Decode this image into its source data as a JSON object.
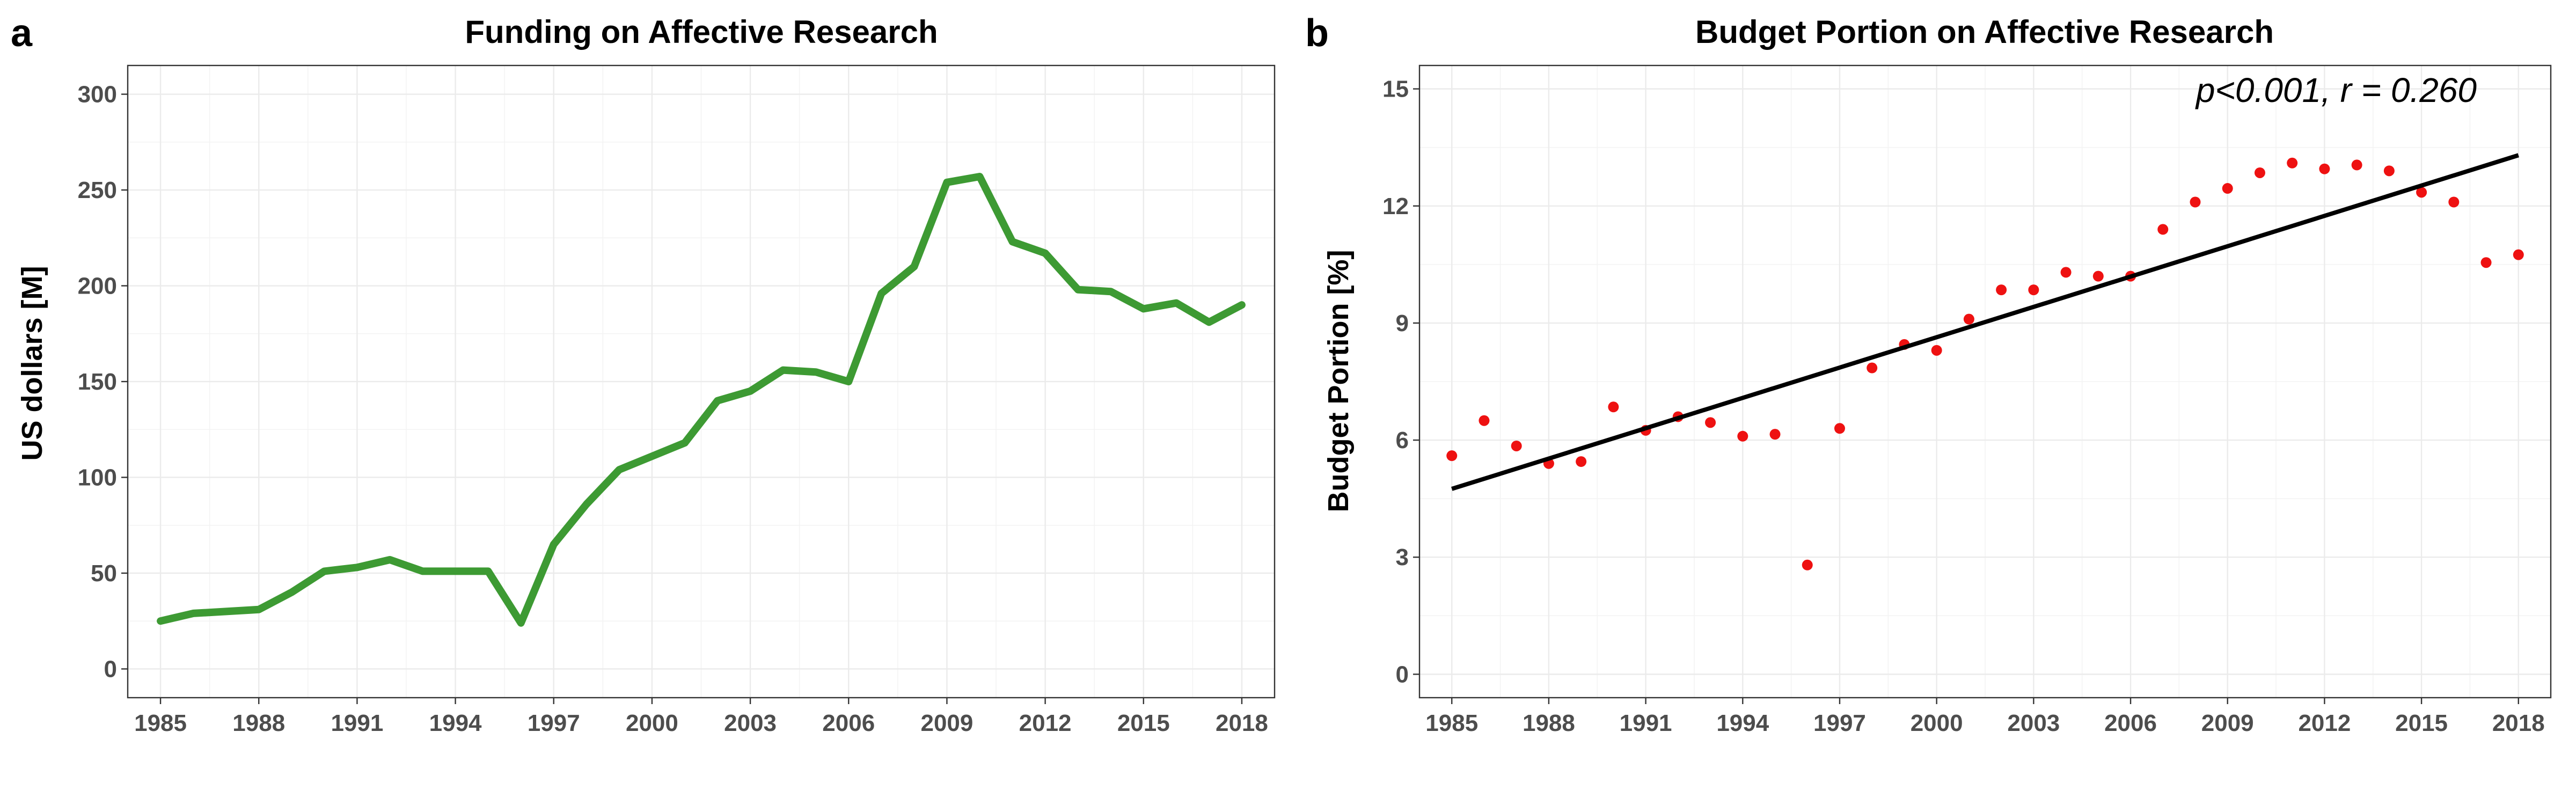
{
  "chart_data": [
    {
      "panel_label": "a",
      "type": "line",
      "title": "Funding on Affective Research",
      "xlabel": "",
      "ylabel": "US dollars [M]",
      "xlim": [
        1984,
        2019
      ],
      "ylim": [
        -15,
        315
      ],
      "x_ticks": [
        "1985",
        "1988",
        "1991",
        "1994",
        "1997",
        "2000",
        "2003",
        "2006",
        "2009",
        "2012",
        "2015",
        "2018"
      ],
      "y_ticks": [
        "0",
        "50",
        "100",
        "150",
        "200",
        "250",
        "300"
      ],
      "grid": true,
      "color": "#3d9a33",
      "series": [
        {
          "x": [
            1985,
            1986,
            1987,
            1988,
            1989,
            1990,
            1991,
            1992,
            1993,
            1994,
            1995,
            1996,
            1997,
            1998,
            1999,
            2000,
            2001,
            2002,
            2003,
            2004,
            2005,
            2006,
            2007,
            2008,
            2009,
            2010,
            2011,
            2012,
            2013,
            2014,
            2015,
            2016,
            2017,
            2018
          ],
          "values": [
            25,
            29,
            30,
            31,
            40,
            51,
            53,
            57,
            51,
            51,
            51,
            24,
            65,
            86,
            104,
            111,
            118,
            140,
            145,
            156,
            155,
            150,
            196,
            210,
            254,
            257,
            223,
            217,
            198,
            197,
            188,
            191,
            181,
            190
          ]
        }
      ]
    },
    {
      "panel_label": "b",
      "type": "scatter",
      "title": "Budget Portion on Affective Research",
      "xlabel": "",
      "ylabel": "Budget Portion [%]",
      "xlim": [
        1984,
        2019
      ],
      "ylim": [
        -0.6,
        15.6
      ],
      "x_ticks": [
        "1985",
        "1988",
        "1991",
        "1994",
        "1997",
        "2000",
        "2003",
        "2006",
        "2009",
        "2012",
        "2015",
        "2018"
      ],
      "y_ticks": [
        "0",
        "3",
        "6",
        "9",
        "12",
        "15"
      ],
      "grid": true,
      "point_color": "#ee1111",
      "fit_line_color": "#000000",
      "annotation": {
        "p_symbol": "p",
        "p_value": "<0.001",
        "separator": ", ",
        "r_symbol": "r",
        "r_value": " = 0.260"
      },
      "series": [
        {
          "x": [
            1985,
            1986,
            1987,
            1988,
            1989,
            1990,
            1991,
            1992,
            1993,
            1994,
            1995,
            1996,
            1997,
            1998,
            1999,
            2000,
            2001,
            2002,
            2003,
            2004,
            2005,
            2006,
            2007,
            2008,
            2009,
            2010,
            2011,
            2012,
            2013,
            2014,
            2015,
            2016,
            2017,
            2018
          ],
          "values": [
            5.6,
            6.5,
            5.85,
            5.4,
            5.45,
            6.85,
            6.25,
            6.6,
            6.45,
            6.1,
            6.15,
            2.8,
            6.3,
            7.85,
            8.45,
            8.3,
            9.1,
            9.85,
            9.85,
            10.3,
            10.2,
            10.2,
            11.4,
            12.1,
            12.45,
            12.85,
            13.1,
            12.95,
            13.05,
            12.9,
            12.35,
            12.1,
            10.55,
            10.75
          ]
        }
      ],
      "fit_line": {
        "x": [
          1985,
          2018
        ],
        "y": [
          4.75,
          13.3
        ]
      }
    }
  ]
}
